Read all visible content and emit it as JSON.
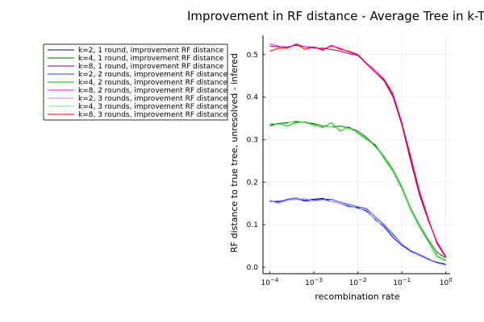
{
  "chart_data": {
    "type": "line",
    "title": "Improvement in RF distance - Average Tree in k-Tr",
    "xlabel": "recombination rate",
    "ylabel": "RF distance to true tree, unresolved - infered",
    "x_scale": "log10",
    "xlim": [
      7e-05,
      1.25
    ],
    "ylim": [
      -0.015,
      0.545
    ],
    "grid": true,
    "legend_position": "outside-left-top",
    "x_ticks": [
      {
        "value": 0.0001,
        "base": "10",
        "exp": "−4"
      },
      {
        "value": 0.001,
        "base": "10",
        "exp": "−3"
      },
      {
        "value": 0.01,
        "base": "10",
        "exp": "−2"
      },
      {
        "value": 0.1,
        "base": "10",
        "exp": "−1"
      },
      {
        "value": 1,
        "base": "10",
        "exp": "0"
      }
    ],
    "y_ticks": [
      {
        "value": 0.0,
        "label": "0.0"
      },
      {
        "value": 0.1,
        "label": "0.1"
      },
      {
        "value": 0.2,
        "label": "0.2"
      },
      {
        "value": 0.3,
        "label": "0.3"
      },
      {
        "value": 0.4,
        "label": "0.4"
      },
      {
        "value": 0.5,
        "label": "0.5"
      }
    ],
    "x": [
      0.0001,
      0.000158,
      0.000251,
      0.000398,
      0.000631,
      0.001,
      0.00158,
      0.00251,
      0.00398,
      0.00631,
      0.01,
      0.0158,
      0.0251,
      0.0398,
      0.0631,
      0.1,
      0.158,
      0.251,
      0.398,
      0.631,
      1.0
    ],
    "series": [
      {
        "name": "k=2, 1 round, improvement RF distance",
        "color": "#0000a0",
        "values": [
          0.155,
          0.155,
          0.158,
          0.16,
          0.158,
          0.16,
          0.162,
          0.155,
          0.15,
          0.143,
          0.14,
          0.132,
          0.112,
          0.095,
          0.07,
          0.052,
          0.038,
          0.028,
          0.018,
          0.012,
          0.007
        ]
      },
      {
        "name": "k=4, 1 round, improvement RF distance",
        "color": "#006400",
        "values": [
          0.335,
          0.338,
          0.34,
          0.342,
          0.34,
          0.338,
          0.332,
          0.33,
          0.332,
          0.328,
          0.32,
          0.305,
          0.285,
          0.26,
          0.23,
          0.19,
          0.14,
          0.1,
          0.065,
          0.035,
          0.022
        ]
      },
      {
        "name": "k=8, 1 round, improvement RF distance",
        "color": "#800080",
        "values": [
          0.52,
          0.518,
          0.518,
          0.522,
          0.518,
          0.515,
          0.515,
          0.512,
          0.508,
          0.502,
          0.498,
          0.478,
          0.458,
          0.438,
          0.4,
          0.335,
          0.25,
          0.17,
          0.11,
          0.06,
          0.025
        ]
      },
      {
        "name": "k=2, 2 rounds, improvement RF distance",
        "color": "#3333ff",
        "values": [
          0.155,
          0.153,
          0.16,
          0.163,
          0.155,
          0.158,
          0.16,
          0.16,
          0.153,
          0.148,
          0.142,
          0.138,
          0.118,
          0.1,
          0.078,
          0.055,
          0.04,
          0.03,
          0.02,
          0.01,
          0.005
        ]
      },
      {
        "name": "k=4, 2 rounds, improvement RF distance",
        "color": "#00bb00",
        "values": [
          0.332,
          0.338,
          0.332,
          0.34,
          0.342,
          0.335,
          0.328,
          0.34,
          0.32,
          0.33,
          0.315,
          0.3,
          0.288,
          0.255,
          0.225,
          0.185,
          0.135,
          0.095,
          0.06,
          0.025,
          0.015
        ]
      },
      {
        "name": "k=8, 2 rounds, improvement RF distance",
        "color": "#ff00ff",
        "values": [
          0.525,
          0.52,
          0.515,
          0.525,
          0.518,
          0.518,
          0.512,
          0.52,
          0.515,
          0.505,
          0.5,
          0.48,
          0.462,
          0.442,
          0.408,
          0.34,
          0.262,
          0.18,
          0.115,
          0.055,
          0.022
        ]
      },
      {
        "name": "k=2, 3 rounds, improvement RF distance",
        "color": "#9999ff",
        "values": [
          0.158,
          0.15,
          0.158,
          0.16,
          0.162,
          0.156,
          0.158,
          0.155,
          0.15,
          0.145,
          0.138,
          0.135,
          0.11,
          0.098,
          0.075,
          0.055,
          0.04,
          0.028,
          0.018,
          0.01,
          0.005
        ]
      },
      {
        "name": "k=4, 3 rounds, improvement RF distance",
        "color": "#88dd88",
        "values": [
          0.34,
          0.335,
          0.338,
          0.345,
          0.34,
          0.332,
          0.33,
          0.33,
          0.325,
          0.325,
          0.318,
          0.302,
          0.282,
          0.258,
          0.228,
          0.188,
          0.138,
          0.098,
          0.062,
          0.028,
          0.018
        ]
      },
      {
        "name": "k=8, 3 rounds, improvement RF distance",
        "color": "#ff0000",
        "values": [
          0.508,
          0.515,
          0.515,
          0.525,
          0.512,
          0.518,
          0.51,
          0.522,
          0.512,
          0.508,
          0.5,
          0.478,
          0.458,
          0.44,
          0.405,
          0.34,
          0.258,
          0.178,
          0.112,
          0.058,
          0.025
        ]
      }
    ]
  }
}
